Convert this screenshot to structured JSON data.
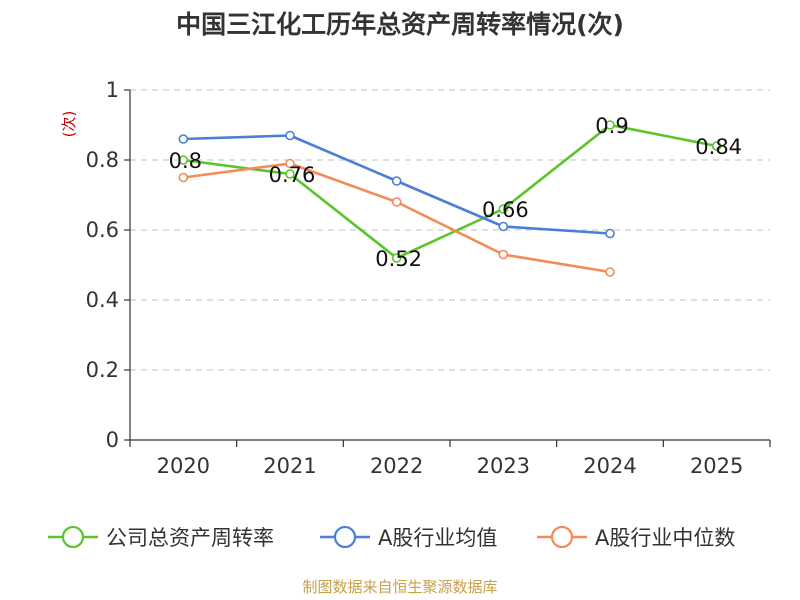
{
  "chart_data": {
    "type": "line",
    "title": "中国三江化工历年总资产周转率情况(次)",
    "ylabel": "(次)",
    "xlabel": "",
    "categories": [
      "2020",
      "2021",
      "2022",
      "2023",
      "2024",
      "2025"
    ],
    "ylim": [
      0,
      1
    ],
    "yticks": [
      0,
      0.2,
      0.4,
      0.6,
      0.8,
      1
    ],
    "ytick_labels": [
      "0",
      "0.2",
      "0.4",
      "0.6",
      "0.8",
      "1"
    ],
    "grid": true,
    "legend_position": "bottom",
    "series": [
      {
        "key": "company",
        "name": "公司总资产周转率",
        "color": "#5ac42a",
        "values": [
          0.8,
          0.76,
          0.52,
          0.66,
          0.9,
          0.84
        ],
        "labels": [
          "0.8",
          "0.76",
          "0.52",
          "0.66",
          "0.9",
          "0.84"
        ]
      },
      {
        "key": "avg",
        "name": "A股行业均值",
        "color": "#4a7fd8",
        "values": [
          0.86,
          0.87,
          0.74,
          0.61,
          0.59,
          null
        ]
      },
      {
        "key": "median",
        "name": "A股行业中位数",
        "color": "#f58a56",
        "values": [
          0.75,
          0.79,
          0.68,
          0.53,
          0.48,
          null
        ]
      }
    ],
    "source": "制图数据来自恒生聚源数据库"
  }
}
